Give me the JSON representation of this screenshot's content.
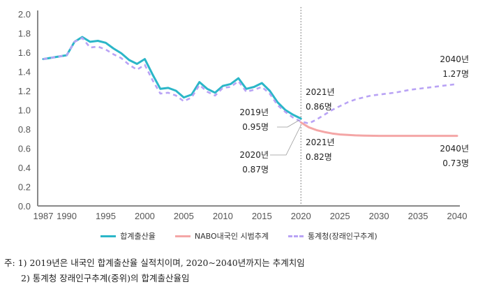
{
  "chart_data": {
    "type": "line",
    "title": "",
    "xlabel": "",
    "ylabel": "",
    "xlim": [
      1987,
      2040
    ],
    "ylim": [
      0.0,
      2.0
    ],
    "yticks": [
      "0.0",
      "0.2",
      "0.4",
      "0.6",
      "0.8",
      "1.0",
      "1.2",
      "1.4",
      "1.6",
      "1.8",
      "2.0"
    ],
    "xticks": [
      "1987",
      "1990",
      "1995",
      "2000",
      "2005",
      "2010",
      "2015",
      "2020",
      "2025",
      "2030",
      "2035",
      "2040"
    ],
    "xtick_values": [
      1987,
      1990,
      1995,
      2000,
      2005,
      2010,
      2015,
      2020,
      2025,
      2030,
      2035,
      2040
    ],
    "divider_year": 2020,
    "grid": false,
    "legend_position": "bottom",
    "series": [
      {
        "name": "합계출산율",
        "color": "#2bb6c8",
        "style": "solid",
        "x": [
          1987,
          1990,
          1991,
          1992,
          1993,
          1994,
          1995,
          1996,
          1997,
          1998,
          1999,
          2000,
          2001,
          2002,
          2003,
          2004,
          2005,
          2006,
          2007,
          2008,
          2009,
          2010,
          2011,
          2012,
          2013,
          2014,
          2015,
          2016,
          2017,
          2018,
          2019,
          2020
        ],
        "values": [
          1.53,
          1.57,
          1.71,
          1.76,
          1.71,
          1.72,
          1.7,
          1.64,
          1.59,
          1.52,
          1.48,
          1.53,
          1.37,
          1.22,
          1.23,
          1.2,
          1.13,
          1.16,
          1.29,
          1.22,
          1.18,
          1.25,
          1.27,
          1.33,
          1.22,
          1.24,
          1.28,
          1.2,
          1.08,
          1.0,
          0.95,
          0.91
        ]
      },
      {
        "name": "NABO내국인 시범추계",
        "color": "#f4a6a6",
        "style": "solid",
        "x": [
          2020,
          2021,
          2022,
          2023,
          2024,
          2025,
          2026,
          2027,
          2028,
          2030,
          2032,
          2035,
          2038,
          2040
        ],
        "values": [
          0.87,
          0.82,
          0.79,
          0.77,
          0.755,
          0.745,
          0.74,
          0.735,
          0.733,
          0.73,
          0.73,
          0.73,
          0.73,
          0.73
        ]
      },
      {
        "name": "통계청(장래인구추계)",
        "color": "#b9a3f5",
        "style": "dashed",
        "x": [
          1987,
          1990,
          1991,
          1992,
          1993,
          1994,
          1995,
          1996,
          1997,
          1998,
          1999,
          2000,
          2001,
          2002,
          2003,
          2004,
          2005,
          2006,
          2007,
          2008,
          2009,
          2010,
          2011,
          2012,
          2013,
          2014,
          2015,
          2016,
          2017,
          2018,
          2019,
          2020,
          2021,
          2022,
          2023,
          2024,
          2025,
          2026,
          2027,
          2028,
          2029,
          2030,
          2032,
          2034,
          2036,
          2038,
          2040
        ],
        "values": [
          1.53,
          1.57,
          1.71,
          1.75,
          1.65,
          1.66,
          1.63,
          1.58,
          1.54,
          1.47,
          1.42,
          1.47,
          1.31,
          1.17,
          1.18,
          1.15,
          1.09,
          1.13,
          1.26,
          1.19,
          1.15,
          1.23,
          1.24,
          1.3,
          1.19,
          1.21,
          1.24,
          1.17,
          1.05,
          0.98,
          0.92,
          0.88,
          0.86,
          0.9,
          0.95,
          1.0,
          1.04,
          1.08,
          1.11,
          1.13,
          1.15,
          1.16,
          1.18,
          1.21,
          1.23,
          1.25,
          1.27
        ]
      }
    ],
    "annotations": [
      {
        "id": "a2019",
        "year_label": "2019년",
        "value_label": "0.95명"
      },
      {
        "id": "a2020",
        "year_label": "2020년",
        "value_label": "0.87명"
      },
      {
        "id": "a2021u",
        "year_label": "2021년",
        "value_label": "0.86명"
      },
      {
        "id": "a2021l",
        "year_label": "2021년",
        "value_label": "0.82명"
      },
      {
        "id": "a2040u",
        "year_label": "2040년",
        "value_label": "1.27명"
      },
      {
        "id": "a2040l",
        "year_label": "2040년",
        "value_label": "0.73명"
      }
    ]
  },
  "legend": {
    "items": [
      "합계출산율",
      "NABO내국인 시범추계",
      "통계청(장래인구추계)"
    ]
  },
  "notes": {
    "line1": "주: 1) 2019년은 내국인 합계출산율 실적치이며, 2020~2040년까지는 추계치임",
    "line2": "2) 통계청 장래인구추계(중위)의 합계출산율임"
  }
}
